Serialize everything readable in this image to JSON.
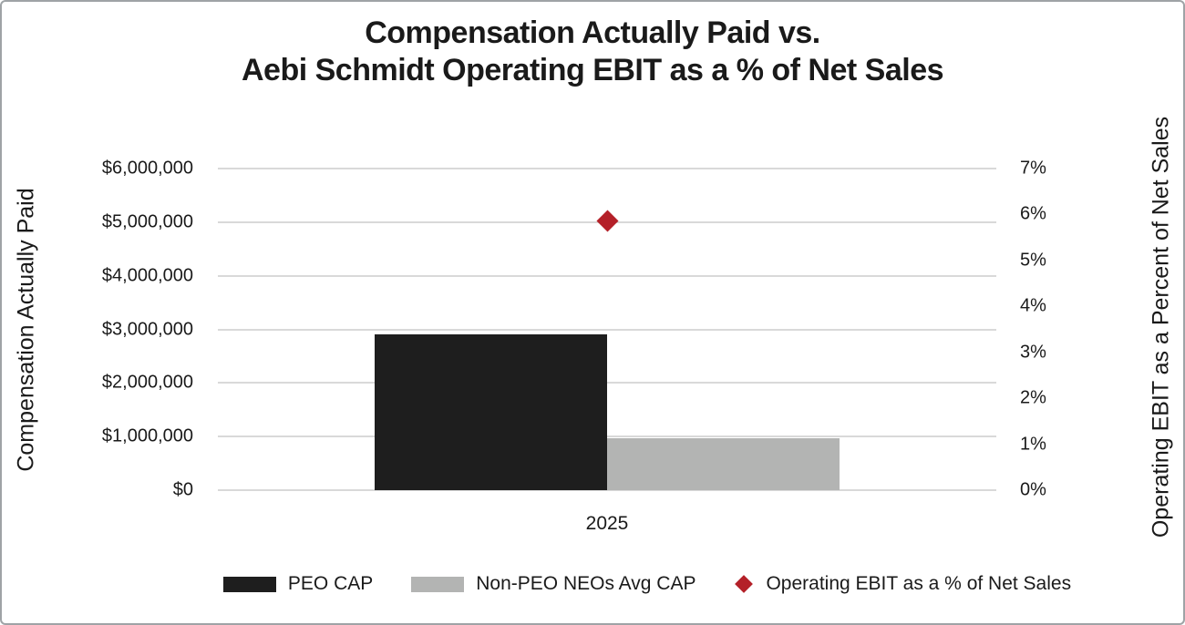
{
  "chart_data": {
    "type": "bar",
    "title_lines": [
      "Compensation Actually Paid vs.",
      "Aebi Schmidt Operating EBIT as a % of Net Sales"
    ],
    "categories": [
      "2025"
    ],
    "series": [
      {
        "name": "PEO CAP",
        "kind": "bar",
        "axis": "left",
        "color": "#1e1e1e",
        "values": [
          2900000
        ]
      },
      {
        "name": "Non-PEO NEOs Avg CAP",
        "kind": "bar",
        "axis": "left",
        "color": "#b3b4b3",
        "values": [
          970000
        ]
      },
      {
        "name": "Operating EBIT as a % of Net Sales",
        "kind": "scatter",
        "marker": "diamond",
        "axis": "right",
        "color": "#b42028",
        "values": [
          5.85
        ]
      }
    ],
    "left_axis": {
      "title": "Compensation Actually Paid",
      "min": 0,
      "max": 6000000,
      "tick_step": 1000000,
      "ticks": [
        {
          "value": 0,
          "label": "$0"
        },
        {
          "value": 1000000,
          "label": "$1,000,000"
        },
        {
          "value": 2000000,
          "label": "$2,000,000"
        },
        {
          "value": 3000000,
          "label": "$3,000,000"
        },
        {
          "value": 4000000,
          "label": "$4,000,000"
        },
        {
          "value": 5000000,
          "label": "$5,000,000"
        },
        {
          "value": 6000000,
          "label": "$6,000,000"
        }
      ]
    },
    "right_axis": {
      "title": "Operating EBIT as a Percent of Net Sales",
      "min": 0,
      "max": 7,
      "tick_step": 1,
      "ticks": [
        {
          "value": 0,
          "label": "0%"
        },
        {
          "value": 1,
          "label": "1%"
        },
        {
          "value": 2,
          "label": "2%"
        },
        {
          "value": 3,
          "label": "3%"
        },
        {
          "value": 4,
          "label": "4%"
        },
        {
          "value": 5,
          "label": "5%"
        },
        {
          "value": 6,
          "label": "6%"
        },
        {
          "value": 7,
          "label": "7%"
        }
      ]
    },
    "grid": {
      "horizontal": true,
      "vertical": false,
      "color": "#d9d9d9"
    },
    "legend_position": "bottom",
    "colors": {
      "peo_bar": "#1e1e1e",
      "non_peo_bar": "#b3b4b3",
      "ebit_marker": "#b42028",
      "text": "#1a1a1a",
      "gridline": "#d9d9d9"
    }
  }
}
